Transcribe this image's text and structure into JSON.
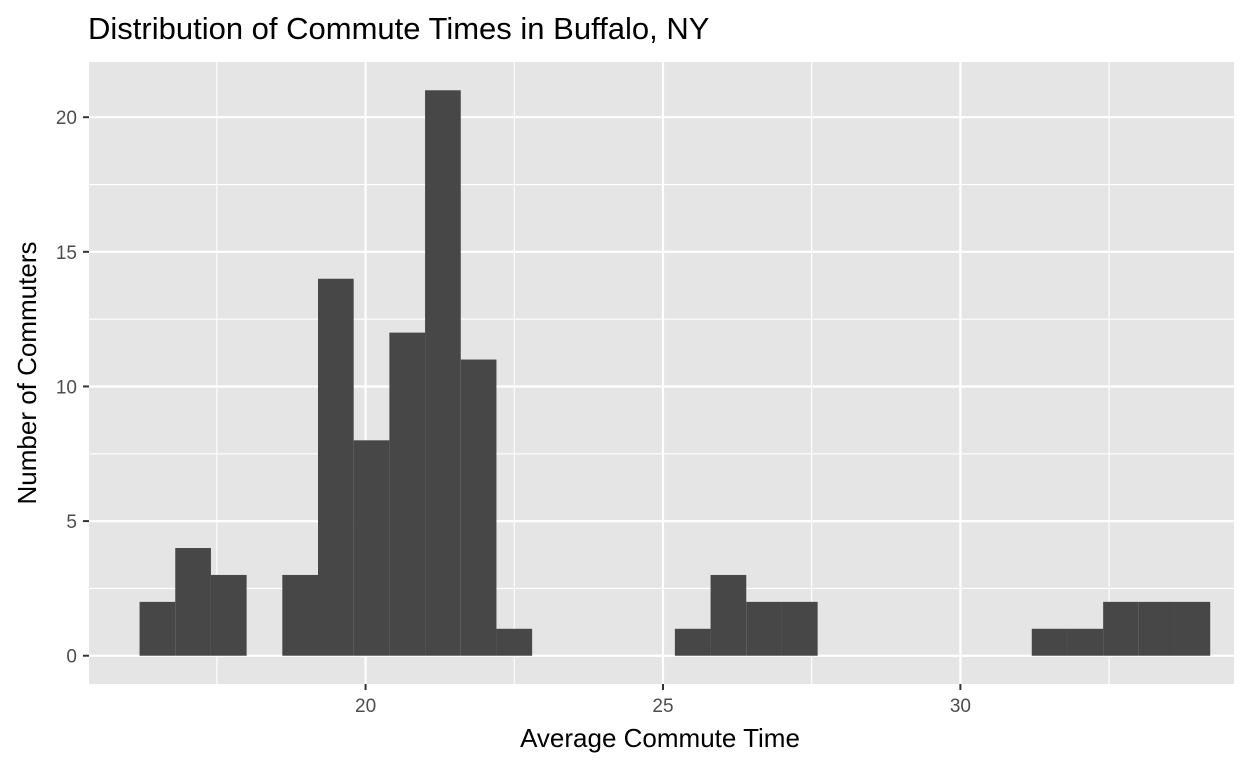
{
  "chart_data": {
    "type": "bar",
    "title": "Distribution of Commute Times in Buffalo, NY",
    "xlabel": "Average Commute Time",
    "ylabel": "Number of Commuters",
    "xlim": [
      15.35,
      34.6
    ],
    "ylim": [
      -1.05,
      22.05
    ],
    "x_ticks": [
      20,
      25,
      30
    ],
    "y_ticks": [
      0,
      5,
      10,
      15,
      20
    ],
    "x_minor": [
      17.5,
      22.5,
      27.5,
      32.5
    ],
    "y_minor": [
      2.5,
      7.5,
      12.5,
      17.5
    ],
    "grid": true,
    "bin_width": 0.6,
    "bins": [
      {
        "x0": 16.2,
        "x1": 16.8,
        "count": 2
      },
      {
        "x0": 16.8,
        "x1": 17.4,
        "count": 4
      },
      {
        "x0": 17.4,
        "x1": 18.0,
        "count": 3
      },
      {
        "x0": 18.0,
        "x1": 18.6,
        "count": 0
      },
      {
        "x0": 18.6,
        "x1": 19.2,
        "count": 3
      },
      {
        "x0": 19.2,
        "x1": 19.8,
        "count": 14
      },
      {
        "x0": 19.8,
        "x1": 20.4,
        "count": 8
      },
      {
        "x0": 20.4,
        "x1": 21.0,
        "count": 12
      },
      {
        "x0": 21.0,
        "x1": 21.6,
        "count": 21
      },
      {
        "x0": 21.6,
        "x1": 22.2,
        "count": 11
      },
      {
        "x0": 22.2,
        "x1": 22.8,
        "count": 1
      },
      {
        "x0": 22.8,
        "x1": 23.4,
        "count": 0
      },
      {
        "x0": 23.4,
        "x1": 24.0,
        "count": 0
      },
      {
        "x0": 24.0,
        "x1": 24.6,
        "count": 0
      },
      {
        "x0": 24.6,
        "x1": 25.2,
        "count": 0
      },
      {
        "x0": 25.2,
        "x1": 25.8,
        "count": 1
      },
      {
        "x0": 25.8,
        "x1": 26.4,
        "count": 3
      },
      {
        "x0": 26.4,
        "x1": 27.0,
        "count": 2
      },
      {
        "x0": 27.0,
        "x1": 27.6,
        "count": 2
      },
      {
        "x0": 27.6,
        "x1": 28.2,
        "count": 0
      },
      {
        "x0": 28.2,
        "x1": 28.8,
        "count": 0
      },
      {
        "x0": 28.8,
        "x1": 29.4,
        "count": 0
      },
      {
        "x0": 29.4,
        "x1": 30.0,
        "count": 0
      },
      {
        "x0": 30.0,
        "x1": 30.6,
        "count": 0
      },
      {
        "x0": 30.6,
        "x1": 31.2,
        "count": 0
      },
      {
        "x0": 31.2,
        "x1": 31.8,
        "count": 1
      },
      {
        "x0": 31.8,
        "x1": 32.4,
        "count": 1
      },
      {
        "x0": 32.4,
        "x1": 33.0,
        "count": 2
      },
      {
        "x0": 33.0,
        "x1": 33.6,
        "count": 2
      },
      {
        "x0": 33.6,
        "x1": 34.2,
        "count": 2
      }
    ],
    "colors": {
      "panel": "#e5e5e5",
      "grid": "#ffffff",
      "bar": "#474747",
      "tick": "#333333"
    }
  }
}
